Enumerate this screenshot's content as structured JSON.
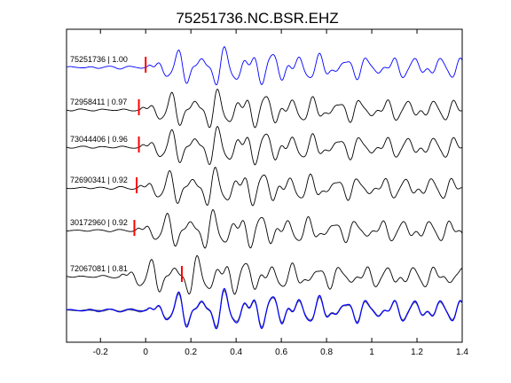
{
  "chart_data": {
    "type": "line",
    "title": "75251736.NC.BSR.EHZ",
    "xlabel": "",
    "ylabel": "",
    "xlim": [
      -0.35,
      1.4
    ],
    "xticks": [
      -0.2,
      0,
      0.2,
      0.4,
      0.6,
      0.8,
      1,
      1.2,
      1.4
    ],
    "xtick_labels": [
      "-0.2",
      "0",
      "0.2",
      "0.4",
      "0.6",
      "0.8",
      "1",
      "1.2",
      "1.4"
    ],
    "grid": false,
    "traces": [
      {
        "label": "75251736 | 1.00",
        "event_id": "75251736",
        "correlation": 1.0,
        "pick_time": 0.0,
        "color": "#0000ff",
        "onset": 0.0,
        "seed": 1
      },
      {
        "label": "72958411 | 0.97",
        "event_id": "72958411",
        "correlation": 0.97,
        "pick_time": -0.03,
        "color": "#000000",
        "onset": -0.03,
        "seed": 2
      },
      {
        "label": "73044406 | 0.96",
        "event_id": "73044406",
        "correlation": 0.96,
        "pick_time": -0.03,
        "color": "#000000",
        "onset": -0.03,
        "seed": 3
      },
      {
        "label": "72690341 | 0.92",
        "event_id": "72690341",
        "correlation": 0.92,
        "pick_time": -0.04,
        "color": "#000000",
        "onset": -0.04,
        "seed": 4
      },
      {
        "label": "30172960 | 0.92",
        "event_id": "30172960",
        "correlation": 0.92,
        "pick_time": -0.05,
        "color": "#000000",
        "onset": -0.05,
        "seed": 5
      },
      {
        "label": "72067081 | 0.81",
        "event_id": "72067081",
        "correlation": 0.81,
        "pick_time": 0.16,
        "color": "#000000",
        "onset": -0.12,
        "seed": 6
      }
    ],
    "stack": {
      "color_overlay": "#777777",
      "color_reference": "#0000ff"
    },
    "pick_marker_color": "#ff0000"
  }
}
